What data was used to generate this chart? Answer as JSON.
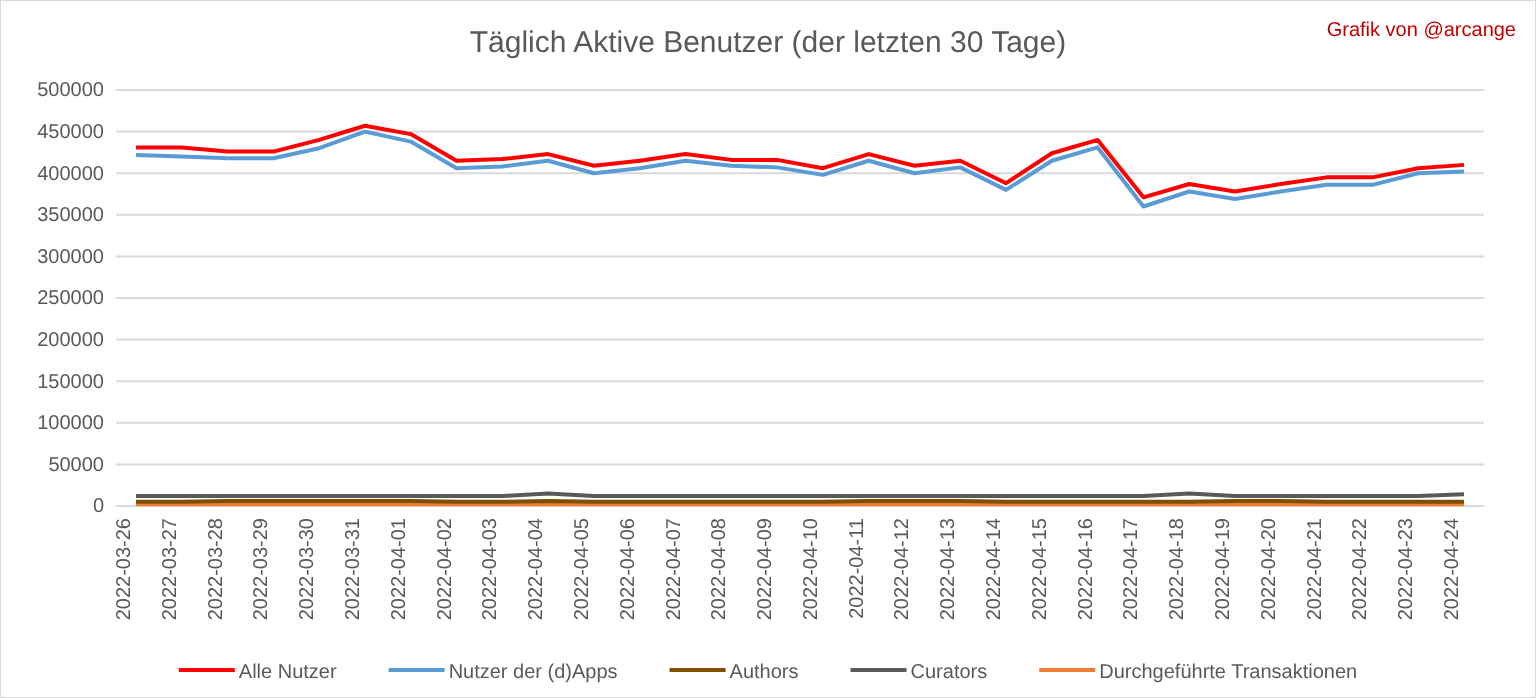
{
  "chart_data": {
    "type": "line",
    "title": "Täglich Aktive Benutzer (der letzten 30 Tage)",
    "annotations": [
      "Grafik von @arcange"
    ],
    "categories": [
      "2022-03-26",
      "2022-03-27",
      "2022-03-28",
      "2022-03-29",
      "2022-03-30",
      "2022-03-31",
      "2022-04-01",
      "2022-04-02",
      "2022-04-03",
      "2022-04-04",
      "2022-04-05",
      "2022-04-06",
      "2022-04-07",
      "2022-04-08",
      "2022-04-09",
      "2022-04-10",
      "2022-04-11",
      "2022-04-12",
      "2022-04-13",
      "2022-04-14",
      "2022-04-15",
      "2022-04-16",
      "2022-04-17",
      "2022-04-18",
      "2022-04-19",
      "2022-04-20",
      "2022-04-21",
      "2022-04-22",
      "2022-04-23",
      "2022-04-24"
    ],
    "series": [
      {
        "name": "Alle Nutzer",
        "color": "#ff0000",
        "values": [
          431000,
          431000,
          426000,
          426000,
          440000,
          457000,
          447000,
          415000,
          417000,
          423000,
          409000,
          415000,
          423000,
          416000,
          416000,
          406000,
          423000,
          409000,
          415000,
          388000,
          424000,
          440000,
          371000,
          387000,
          378000,
          387000,
          395000,
          395000,
          406000,
          410000
        ]
      },
      {
        "name": "Nutzer der (d)Apps",
        "color": "#5b9bd5",
        "values": [
          422000,
          420000,
          418000,
          418000,
          430000,
          450000,
          438000,
          406000,
          408000,
          415000,
          400000,
          406000,
          415000,
          409000,
          407000,
          398000,
          415000,
          400000,
          407000,
          380000,
          415000,
          431000,
          360000,
          378000,
          369000,
          378000,
          386000,
          386000,
          400000,
          402000
        ]
      },
      {
        "name": "Authors",
        "color": "#7f4f00",
        "values": [
          5000,
          5000,
          6000,
          6000,
          6000,
          6000,
          6000,
          5000,
          5000,
          6000,
          5000,
          5000,
          5000,
          5000,
          5000,
          5000,
          6000,
          6000,
          6000,
          5000,
          5000,
          5000,
          5000,
          5000,
          6000,
          6000,
          5000,
          5000,
          5000,
          5000
        ]
      },
      {
        "name": "Curators",
        "color": "#595959",
        "values": [
          12000,
          12000,
          12000,
          12000,
          12000,
          12000,
          12000,
          12000,
          12000,
          15000,
          12000,
          12000,
          12000,
          12000,
          12000,
          12000,
          12000,
          12000,
          12000,
          12000,
          12000,
          12000,
          12000,
          15000,
          12000,
          12000,
          12000,
          12000,
          12000,
          14000
        ]
      },
      {
        "name": "Durchgeführte Transaktionen",
        "color": "#ed7d31",
        "values": [
          2000,
          2000,
          2000,
          2000,
          2000,
          2000,
          2000,
          2000,
          2000,
          2000,
          2000,
          2000,
          2000,
          2000,
          2000,
          2000,
          2000,
          2000,
          2000,
          2000,
          2000,
          2000,
          2000,
          2000,
          2000,
          2000,
          2000,
          2000,
          2000,
          2000
        ]
      }
    ],
    "ylim": [
      0,
      500000
    ],
    "yticks": [
      0,
      50000,
      100000,
      150000,
      200000,
      250000,
      300000,
      350000,
      400000,
      450000,
      500000
    ],
    "grid": "y",
    "legend": "bottom",
    "marker": "none",
    "line_style": "solid"
  }
}
